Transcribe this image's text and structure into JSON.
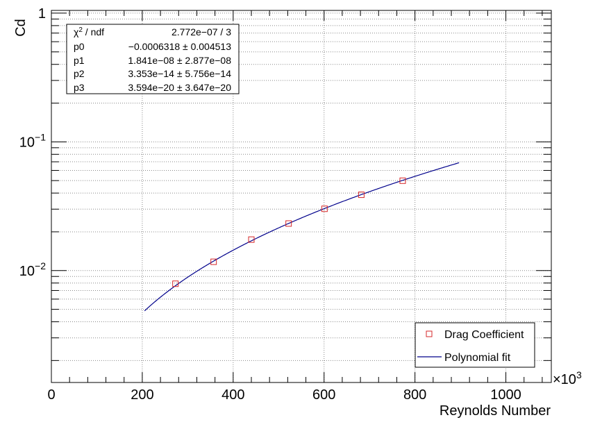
{
  "chart_data": {
    "type": "scatter",
    "title": "",
    "xlabel": "Reynolds Number",
    "ylabel": "Cd",
    "x_multiplier_label": "×10",
    "x_multiplier_exp": "3",
    "xlim": [
      0,
      1100
    ],
    "ylim": [
      0.00135,
      1.05
    ],
    "y_scale": "log",
    "grid": true,
    "x_ticks": [
      0,
      200,
      400,
      600,
      800,
      1000
    ],
    "x_tick_labels": [
      "0",
      "200",
      "400",
      "600",
      "800",
      "1000"
    ],
    "y_ticks": [
      {
        "value": 1,
        "base": "1",
        "exp": ""
      },
      {
        "value": 0.1,
        "base": "10",
        "exp": "−1"
      },
      {
        "value": 0.01,
        "base": "10",
        "exp": "−2"
      }
    ],
    "series": [
      {
        "name": "Drag Coefficient",
        "marker": "open-square",
        "color": "#d62728",
        "x": [
          273,
          357,
          440,
          522,
          601,
          682,
          773
        ],
        "y": [
          0.0079,
          0.0117,
          0.0174,
          0.0232,
          0.0302,
          0.0388,
          0.0499
        ]
      },
      {
        "name": "Polynomial fit",
        "line": true,
        "color": "#00008b",
        "params": [
          -0.0006318,
          1.841e-08,
          3.353e-14,
          3.594e-20
        ],
        "x_range": [
          205,
          897
        ]
      }
    ],
    "legend_position": "bottom-right",
    "stats_box": {
      "position": "top-left",
      "rows": [
        {
          "label_sym": "χ",
          "label_sup": "2",
          "label_rest": " / ndf",
          "value": "2.772e−07 / 3"
        },
        {
          "label": "p0",
          "value": "−0.0006318 ± 0.004513"
        },
        {
          "label": "p1",
          "value": "1.841e−08 ± 2.877e−08"
        },
        {
          "label": "p2",
          "value": "3.353e−14 ± 5.756e−14"
        },
        {
          "label": "p3",
          "value": "3.594e−20 ± 3.647e−20"
        }
      ]
    }
  }
}
